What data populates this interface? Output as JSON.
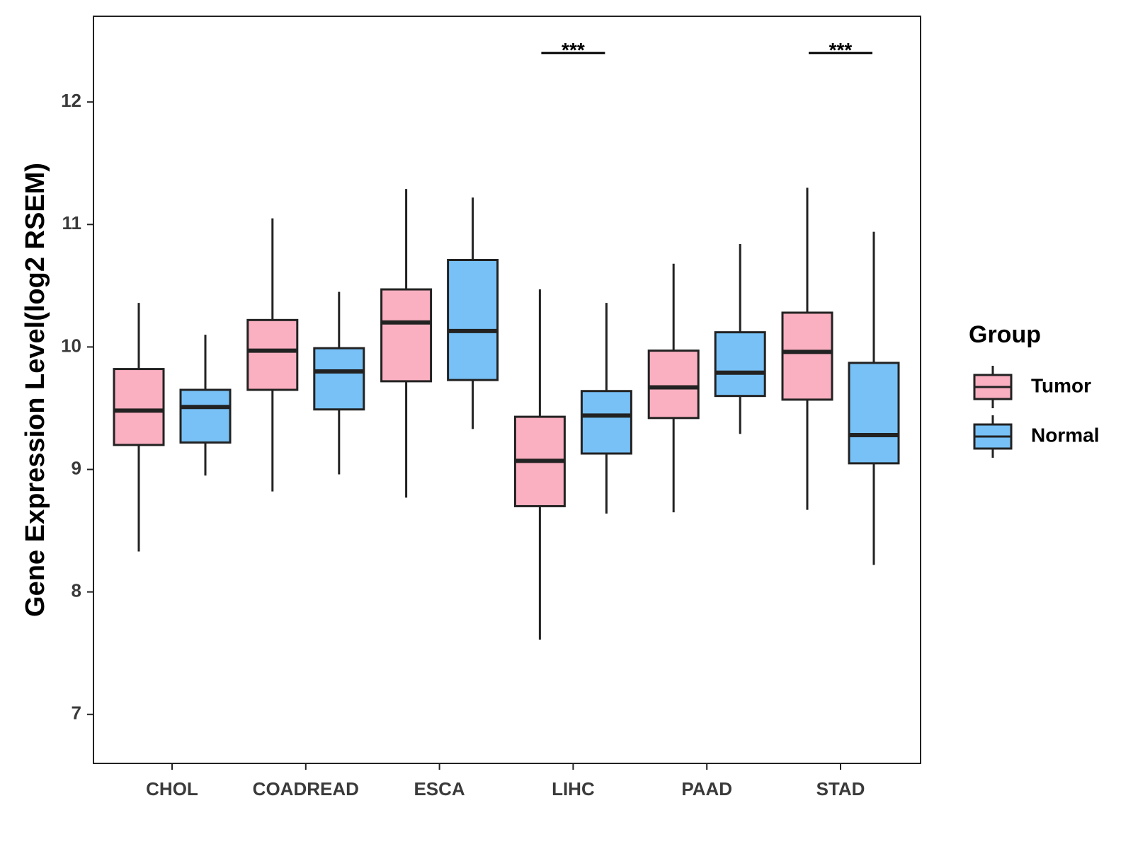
{
  "chart_data": {
    "type": "boxplot",
    "ylabel": "Gene Expression Level(log2 RSEM)",
    "xlabel": "",
    "ylim": [
      6.6,
      12.7
    ],
    "yticks": [
      7,
      8,
      9,
      10,
      11,
      12
    ],
    "categories": [
      "CHOL",
      "COADREAD",
      "ESCA",
      "LIHC",
      "PAAD",
      "STAD"
    ],
    "legend": {
      "title": "Group",
      "position": "right"
    },
    "colors": {
      "Tumor": "#fbb0c1",
      "Normal": "#77c1f7",
      "stroke": "#222222"
    },
    "series": [
      {
        "name": "Tumor",
        "boxes": [
          {
            "min": 8.33,
            "q1": 9.2,
            "median": 9.48,
            "q3": 9.82,
            "max": 10.36
          },
          {
            "min": 8.82,
            "q1": 9.65,
            "median": 9.97,
            "q3": 10.22,
            "max": 11.05
          },
          {
            "min": 8.77,
            "q1": 9.72,
            "median": 10.2,
            "q3": 10.47,
            "max": 11.29
          },
          {
            "min": 7.61,
            "q1": 8.7,
            "median": 9.07,
            "q3": 9.43,
            "max": 10.47
          },
          {
            "min": 8.65,
            "q1": 9.42,
            "median": 9.67,
            "q3": 9.97,
            "max": 10.68
          },
          {
            "min": 8.67,
            "q1": 9.57,
            "median": 9.96,
            "q3": 10.28,
            "max": 11.3
          }
        ]
      },
      {
        "name": "Normal",
        "boxes": [
          {
            "min": 8.95,
            "q1": 9.22,
            "median": 9.51,
            "q3": 9.65,
            "max": 10.1
          },
          {
            "min": 8.96,
            "q1": 9.49,
            "median": 9.8,
            "q3": 9.99,
            "max": 10.45
          },
          {
            "min": 9.33,
            "q1": 9.73,
            "median": 10.13,
            "q3": 10.71,
            "max": 11.22
          },
          {
            "min": 8.64,
            "q1": 9.13,
            "median": 9.44,
            "q3": 9.64,
            "max": 10.36
          },
          {
            "min": 9.29,
            "q1": 9.6,
            "median": 9.79,
            "q3": 10.12,
            "max": 10.84
          },
          {
            "min": 8.22,
            "q1": 9.05,
            "median": 9.28,
            "q3": 9.87,
            "max": 10.94
          }
        ]
      }
    ],
    "annotations": [
      {
        "category": "LIHC",
        "text": "***",
        "y": 12.4
      },
      {
        "category": "STAD",
        "text": "***",
        "y": 12.4
      }
    ]
  }
}
